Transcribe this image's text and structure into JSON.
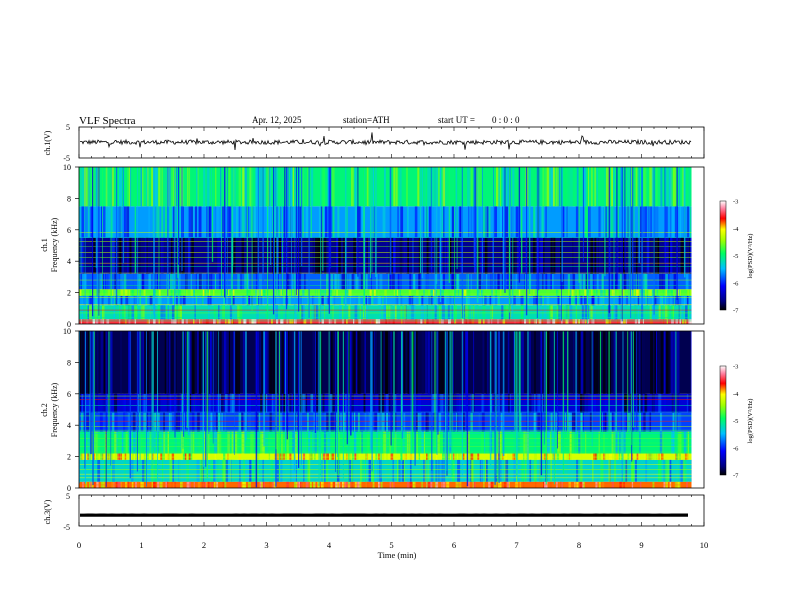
{
  "header": {
    "title": "VLF Spectra",
    "date": "Apr. 12, 2025",
    "station": "station=ATH",
    "start_label": "start UT =",
    "start_time": "0 : 0 : 0"
  },
  "chart_data": [
    {
      "type": "line",
      "panel": "ch1-waveform",
      "ylabel": "ch.1(V)",
      "yticks": [
        "5",
        "-5"
      ],
      "ylim": [
        -5,
        5
      ],
      "xlim": [
        0,
        10
      ],
      "approx_level": 0.1,
      "trace_color": "#000000"
    },
    {
      "type": "heatmap",
      "panel": "ch1-spectrogram",
      "ylabel": "ch.1\nFrequency (kHz)",
      "yticks": [
        "0",
        "2",
        "4",
        "6",
        "8",
        "10"
      ],
      "ylim": [
        0,
        10
      ],
      "xlim": [
        0,
        9.8
      ],
      "colorbar": {
        "label": "log(PSD)(V²/Hz)",
        "ticks": [
          "-3",
          "-4",
          "-5",
          "-6",
          "-7"
        ],
        "range": [
          -7,
          -3
        ]
      },
      "bands": [
        {
          "from": 0.0,
          "to": 0.3,
          "level": -3.5
        },
        {
          "from": 0.3,
          "to": 1.2,
          "level": -5.2
        },
        {
          "from": 1.2,
          "to": 1.8,
          "level": -5.6
        },
        {
          "from": 1.8,
          "to": 2.2,
          "level": -4.7
        },
        {
          "from": 2.2,
          "to": 3.2,
          "level": -5.8
        },
        {
          "from": 3.2,
          "to": 5.5,
          "level": -6.6
        },
        {
          "from": 5.5,
          "to": 7.5,
          "level": -5.6
        },
        {
          "from": 7.5,
          "to": 10.0,
          "level": -5.0
        }
      ]
    },
    {
      "type": "heatmap",
      "panel": "ch2-spectrogram",
      "ylabel": "ch.2\nFrequency (kHz)",
      "yticks": [
        "0",
        "2",
        "4",
        "6",
        "8",
        "10"
      ],
      "ylim": [
        0,
        10
      ],
      "xlim": [
        0,
        9.8
      ],
      "colorbar": {
        "label": "log(PSD)(V²/Hz)",
        "ticks": [
          "-3",
          "-4",
          "-5",
          "-6",
          "-7"
        ],
        "range": [
          -7,
          -3
        ]
      },
      "bands": [
        {
          "from": 0.0,
          "to": 0.4,
          "level": -3.8
        },
        {
          "from": 0.4,
          "to": 1.8,
          "level": -5.3
        },
        {
          "from": 1.8,
          "to": 2.2,
          "level": -4.2
        },
        {
          "from": 2.2,
          "to": 3.6,
          "level": -5.0
        },
        {
          "from": 3.6,
          "to": 4.8,
          "level": -5.9
        },
        {
          "from": 4.8,
          "to": 6.0,
          "level": -6.3
        },
        {
          "from": 6.0,
          "to": 10.0,
          "level": -6.8
        }
      ]
    },
    {
      "type": "line",
      "panel": "ch3-waveform",
      "ylabel": "ch.3(V)",
      "yticks": [
        "5",
        "-5"
      ],
      "ylim": [
        -5,
        5
      ],
      "xlim": [
        0,
        10
      ],
      "approx_level": -1.5,
      "trace_color": "#000000"
    }
  ],
  "xaxis": {
    "label": "Time (min)",
    "ticks": [
      "0",
      "1",
      "2",
      "3",
      "4",
      "5",
      "6",
      "7",
      "8",
      "9",
      "10"
    ],
    "range": [
      0,
      10
    ]
  }
}
